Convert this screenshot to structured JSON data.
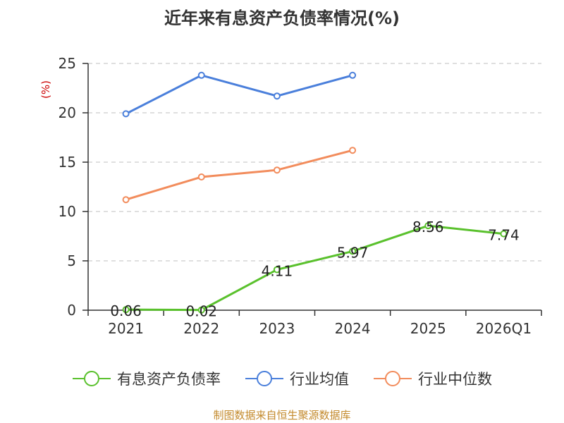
{
  "title": "近年来有息资产负债率情况(%)",
  "source": "制图数据来自恒生聚源数据库",
  "chart_data": {
    "type": "line",
    "categories": [
      "2021",
      "2022",
      "2023",
      "2024",
      "2025",
      "2026Q1"
    ],
    "ylabel": "(%)",
    "ylim": [
      0,
      25
    ],
    "yticks": [
      0,
      5,
      10,
      15,
      20,
      25
    ],
    "grid": true,
    "legend_position": "bottom",
    "series": [
      {
        "name": "有息资产负债率",
        "color": "#5ac12d",
        "values": [
          0.06,
          0.02,
          4.11,
          5.97,
          8.56,
          7.74
        ],
        "labels": [
          "0.06",
          "0.02",
          "4.11",
          "5.97",
          "8.56",
          "7.74"
        ]
      },
      {
        "name": "行业均值",
        "color": "#4a7fdb",
        "values": [
          19.9,
          23.8,
          21.7,
          23.8,
          null,
          null
        ]
      },
      {
        "name": "行业中位数",
        "color": "#f28c5c",
        "values": [
          11.2,
          13.5,
          14.2,
          16.2,
          null,
          null
        ]
      }
    ]
  }
}
